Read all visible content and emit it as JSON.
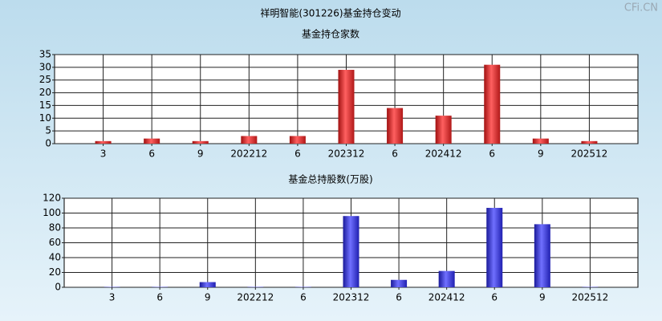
{
  "header": {
    "title": "祥明智能(301226)基金持仓变动",
    "watermark": "CFi.CN"
  },
  "chart_data": [
    {
      "type": "bar",
      "title": "基金持仓家数",
      "color": "red",
      "categories": [
        "3",
        "6",
        "9",
        "202212",
        "6",
        "202312",
        "6",
        "202412",
        "6",
        "9",
        "202512"
      ],
      "values": [
        1,
        2,
        1,
        3,
        3,
        29,
        14,
        11,
        31,
        2,
        1
      ],
      "ylim": [
        0,
        35
      ],
      "yticks": [
        0,
        5,
        10,
        15,
        20,
        25,
        30,
        35
      ],
      "grid": true
    },
    {
      "type": "bar",
      "title": "基金总持股数(万股)",
      "color": "blue",
      "categories": [
        "3",
        "6",
        "9",
        "202212",
        "6",
        "202312",
        "6",
        "202412",
        "6",
        "9",
        "202512"
      ],
      "values": [
        0.5,
        0.5,
        7,
        0.5,
        0.5,
        96,
        10,
        22,
        107,
        85,
        0.5
      ],
      "ylim": [
        0,
        120
      ],
      "yticks": [
        0,
        20,
        40,
        60,
        80,
        100,
        120
      ],
      "grid": true
    }
  ]
}
